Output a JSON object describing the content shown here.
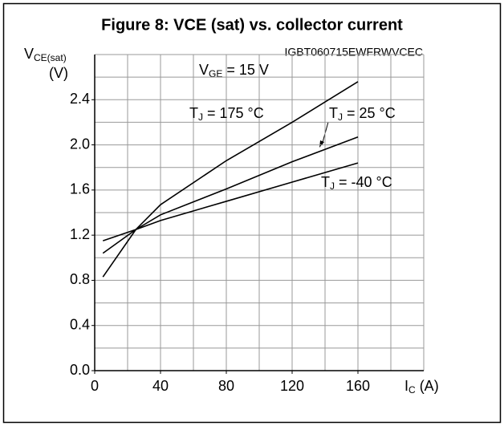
{
  "chart_data": {
    "type": "line",
    "title": "Figure 8: VCE (sat) vs. collector current",
    "code": "IGBT060715EWFRWVCEC",
    "y_label": {
      "main": "V",
      "sub": "CE(sat)",
      "unit": "(V)"
    },
    "x_label": {
      "main": "I",
      "sub": "C",
      "unit": " (A)"
    },
    "annotation": {
      "main": "V",
      "sub": "GE",
      "rest": " = 15 V"
    },
    "x": [
      5,
      25,
      40,
      80,
      120,
      160
    ],
    "series": [
      {
        "name_parts": [
          "T",
          "J",
          " = 175 °C"
        ],
        "color": "#000000",
        "values": [
          0.83,
          1.25,
          1.47,
          1.86,
          2.2,
          2.56
        ]
      },
      {
        "name_parts": [
          "T",
          "J",
          " = 25 °C"
        ],
        "color": "#000000",
        "values": [
          1.04,
          1.25,
          1.38,
          1.61,
          1.85,
          2.07
        ]
      },
      {
        "name_parts": [
          "T",
          "J",
          " = -40 °C"
        ],
        "color": "#000000",
        "values": [
          1.15,
          1.25,
          1.33,
          1.5,
          1.67,
          1.84
        ]
      }
    ],
    "xlim": [
      0,
      200
    ],
    "ylim": [
      0,
      2.8
    ],
    "xticks": [
      0,
      40,
      80,
      120,
      160
    ],
    "yticks": [
      {
        "value": 0,
        "label": "0.0"
      },
      0.4,
      0.8,
      1.2,
      1.6,
      {
        "value": 2,
        "label": "2.0"
      },
      2.4
    ],
    "xgrid": [
      0,
      20,
      40,
      60,
      80,
      100,
      120,
      140,
      160,
      180,
      200
    ],
    "ygrid": [
      0,
      0.2,
      0.4,
      0.6,
      0.8,
      1,
      1.2,
      1.4,
      1.6,
      1.8,
      2,
      2.2,
      2.4,
      2.6,
      2.8
    ],
    "grid": true
  }
}
